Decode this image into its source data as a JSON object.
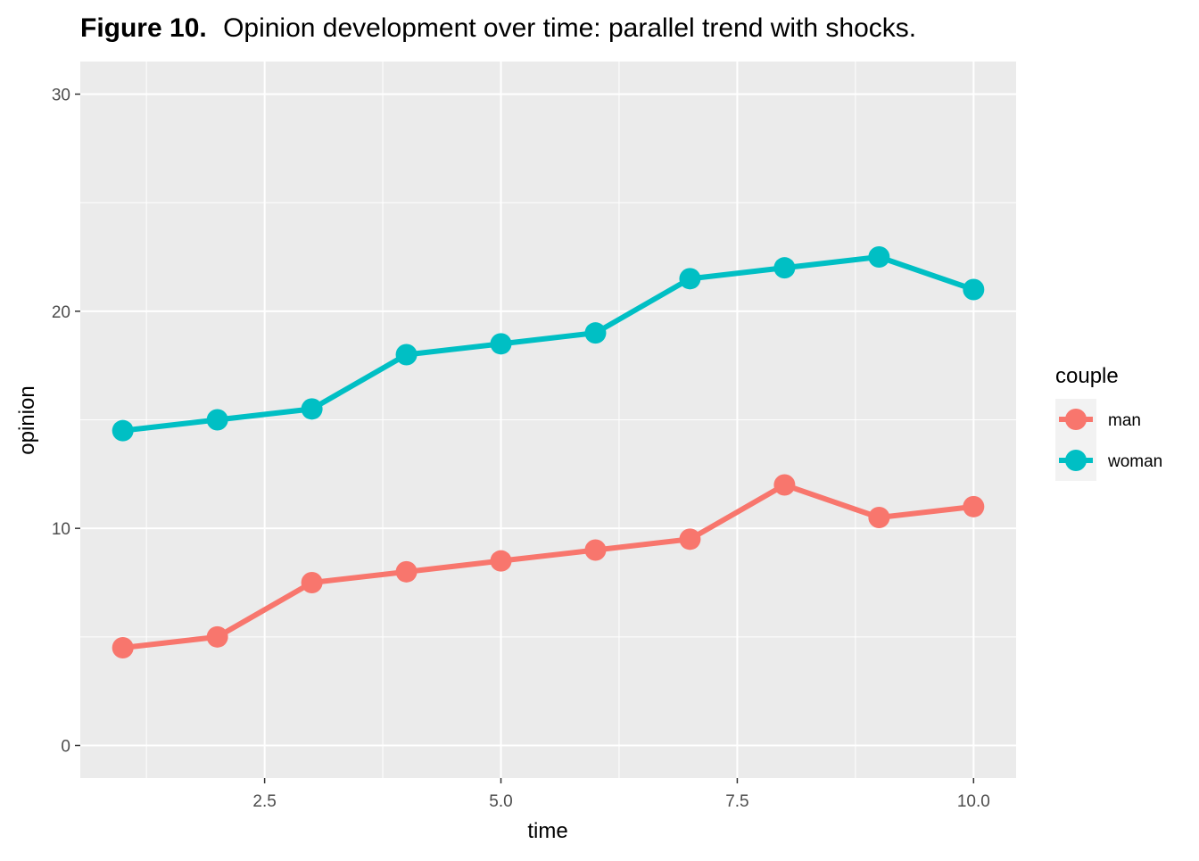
{
  "chart_data": {
    "type": "line",
    "title_prefix": "Figure 10.",
    "title": "Opinion development over time: parallel trend with shocks.",
    "xlabel": "time",
    "ylabel": "opinion",
    "xlim": [
      0.55,
      10.45
    ],
    "ylim": [
      -1.5,
      31.5
    ],
    "x_ticks": [
      2.5,
      5.0,
      7.5,
      10.0
    ],
    "x_tick_labels": [
      "2.5",
      "5.0",
      "7.5",
      "10.0"
    ],
    "x_minor_ticks": [
      1.25,
      3.75,
      6.25,
      8.75
    ],
    "y_ticks": [
      0,
      10,
      20,
      30
    ],
    "y_tick_labels": [
      "0",
      "10",
      "20",
      "30"
    ],
    "y_minor_ticks": [
      5,
      15,
      25
    ],
    "grid": true,
    "legend": {
      "title": "couple",
      "position": "right"
    },
    "x": [
      1,
      2,
      3,
      4,
      5,
      6,
      7,
      8,
      9,
      10
    ],
    "series": [
      {
        "name": "man",
        "color": "#F8766D",
        "values": [
          4.5,
          5.0,
          7.5,
          8.0,
          8.5,
          9.0,
          9.5,
          12.0,
          10.5,
          11.0
        ]
      },
      {
        "name": "woman",
        "color": "#00BFC4",
        "values": [
          14.5,
          15.0,
          15.5,
          18.0,
          18.5,
          19.0,
          21.5,
          22.0,
          22.5,
          21.0
        ]
      }
    ],
    "panel_color": "#EBEBEB",
    "legend_key_color": "#F2F2F2"
  }
}
